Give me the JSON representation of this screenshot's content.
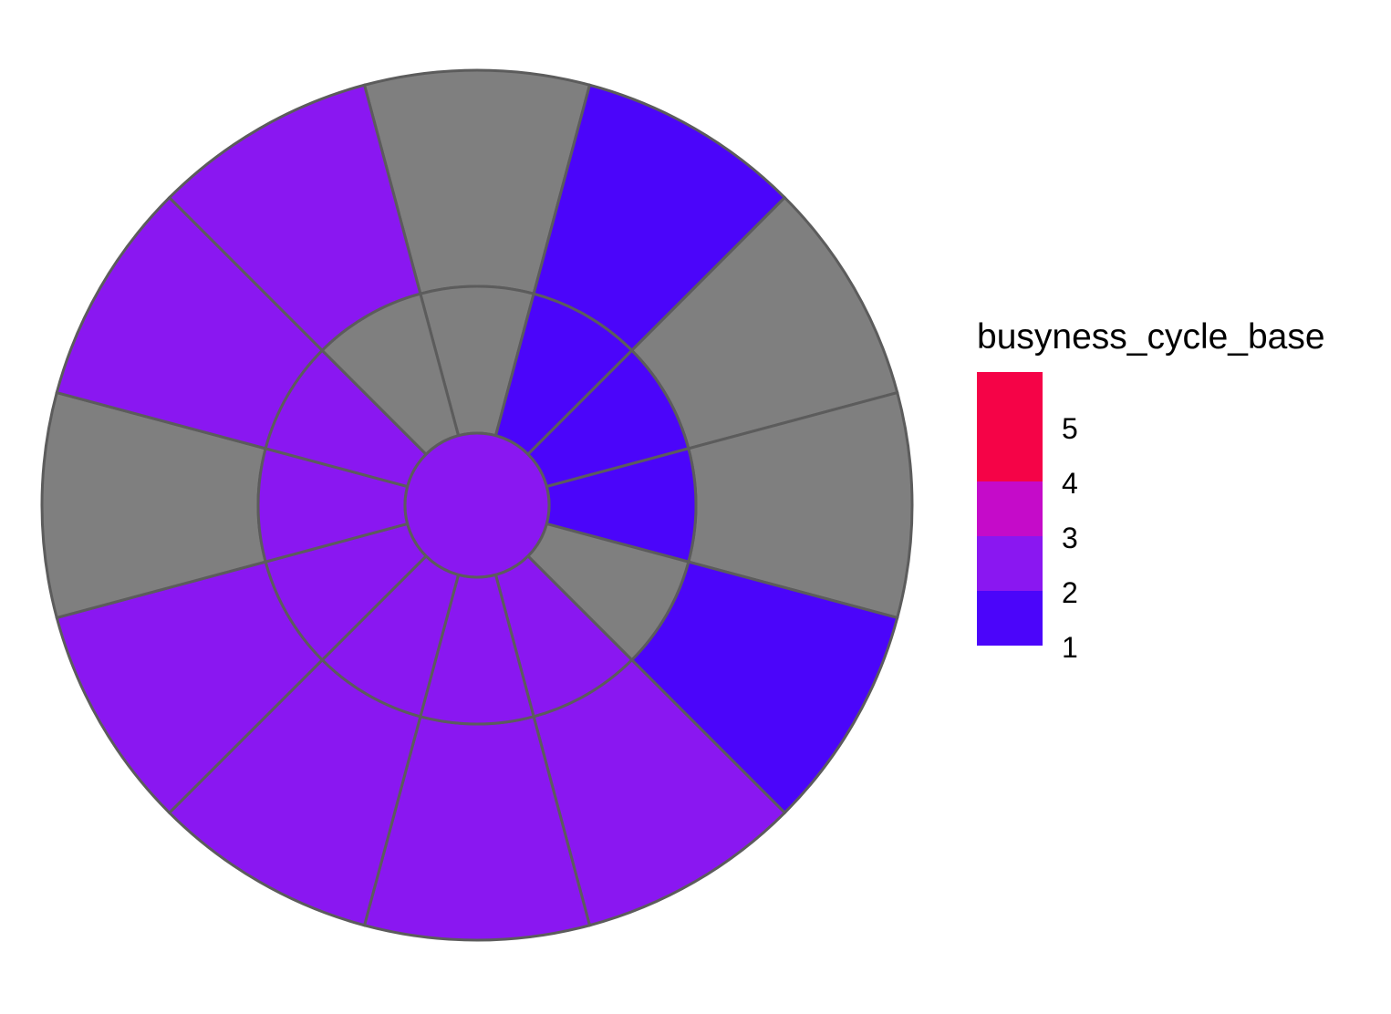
{
  "chart_data": {
    "type": "heatmap",
    "coordinate_system": "polar",
    "title": "",
    "rings": [
      "inner",
      "middle",
      "outer"
    ],
    "center_value": 2,
    "outer_ring": {
      "values": [
        null,
        1,
        null,
        null,
        1,
        2,
        2,
        2,
        2,
        null,
        2,
        2
      ],
      "missing_color": "#7F7F7F"
    },
    "middle_ring": {
      "values": [
        null,
        1,
        1,
        1,
        null,
        2,
        2,
        2,
        2,
        2,
        2,
        null
      ]
    },
    "legend": {
      "title": "busyness_cycle_base",
      "placement": "right",
      "labels": [
        "5",
        "4",
        "3",
        "2",
        "1"
      ],
      "colors": [
        "#4B05FA",
        "#8A17F1",
        "#C50BC9",
        "#F50347"
      ]
    },
    "colors": {
      "1": "#4B05FA",
      "2": "#8A17F1",
      "na": "#7F7F7F",
      "border": "#5C5C5C"
    },
    "grid": false
  }
}
